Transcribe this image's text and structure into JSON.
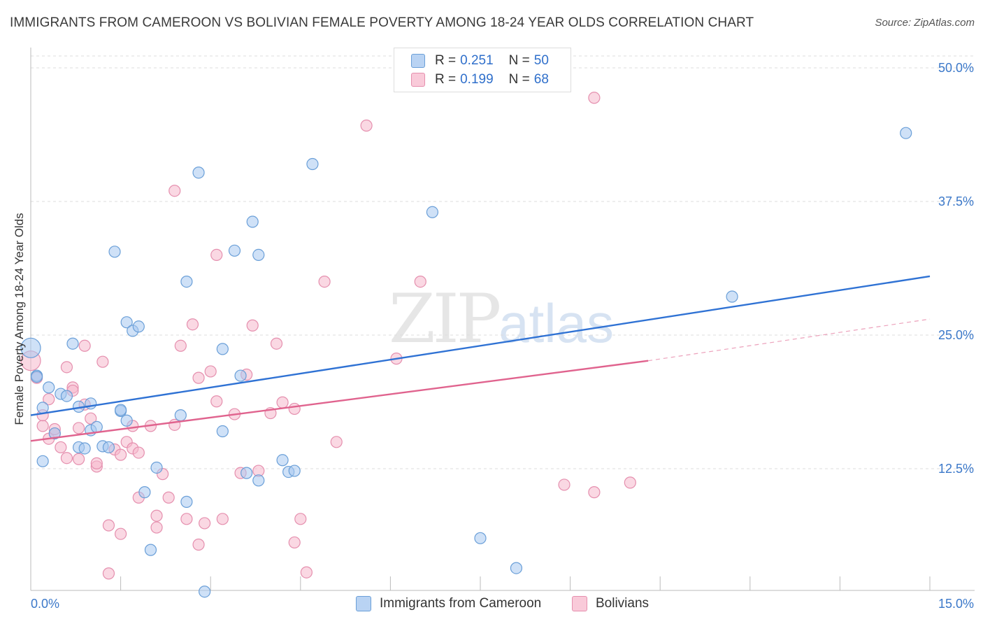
{
  "title": "IMMIGRANTS FROM CAMEROON VS BOLIVIAN FEMALE POVERTY AMONG 18-24 YEAR OLDS CORRELATION CHART",
  "source": "Source: ZipAtlas.com",
  "watermark": {
    "zip": "ZIP",
    "atlas": "atlas"
  },
  "legend": {
    "rows": [
      {
        "r_label": "R =",
        "r_value": "0.251",
        "n_label": "N =",
        "n_value": "50"
      },
      {
        "r_label": "R =",
        "r_value": "0.199",
        "n_label": "N =",
        "n_value": "68"
      }
    ]
  },
  "bottom_legend": [
    "Immigrants from Cameroon",
    "Bolivians"
  ],
  "colors": {
    "blue_fill": "#a8c8f0",
    "blue_stroke": "#6a9fd8",
    "blue_line": "#2f72d4",
    "pink_fill": "#f6b8cc",
    "pink_stroke": "#e58fae",
    "pink_line": "#e0638e",
    "axis_value": "#3b78c9"
  },
  "chart_data": {
    "type": "scatter",
    "title": "IMMIGRANTS FROM CAMEROON VS BOLIVIAN FEMALE POVERTY AMONG 18-24 YEAR OLDS CORRELATION CHART",
    "xlabel": "",
    "ylabel": "Female Poverty Among 18-24 Year Olds",
    "xlim": [
      0,
      15
    ],
    "ylim": [
      0,
      50
    ],
    "x_tick_labels": [
      "0.0%",
      "15.0%"
    ],
    "y_ticks": [
      12.5,
      25.0,
      37.5,
      50.0
    ],
    "y_tick_labels": [
      "12.5%",
      "25.0%",
      "37.5%",
      "50.0%"
    ],
    "grid": "horizontal dashed",
    "legend_position": "top-center",
    "series": [
      {
        "name": "Immigrants from Cameroon",
        "color": "#a8c8f0",
        "r": 0.251,
        "n": 50,
        "trend": {
          "x": [
            0.0,
            15.0
          ],
          "y": [
            17.5,
            30.5
          ],
          "style": "solid"
        },
        "points": [
          [
            0.0,
            23.8
          ],
          [
            0.1,
            21.2
          ],
          [
            0.2,
            18.2
          ],
          [
            0.2,
            13.2
          ],
          [
            0.3,
            20.1
          ],
          [
            0.4,
            15.8
          ],
          [
            0.5,
            19.5
          ],
          [
            0.6,
            19.3
          ],
          [
            0.7,
            24.2
          ],
          [
            0.8,
            18.3
          ],
          [
            0.8,
            14.5
          ],
          [
            0.9,
            14.4
          ],
          [
            1.0,
            18.6
          ],
          [
            1.0,
            16.1
          ],
          [
            1.1,
            16.4
          ],
          [
            1.2,
            14.6
          ],
          [
            1.3,
            14.5
          ],
          [
            1.4,
            32.8
          ],
          [
            1.5,
            17.9
          ],
          [
            1.5,
            18.0
          ],
          [
            1.6,
            17.0
          ],
          [
            1.6,
            26.2
          ],
          [
            1.7,
            25.4
          ],
          [
            1.8,
            25.8
          ],
          [
            1.9,
            10.3
          ],
          [
            2.0,
            4.9
          ],
          [
            2.1,
            12.6
          ],
          [
            2.5,
            17.5
          ],
          [
            2.6,
            9.4
          ],
          [
            2.6,
            30.0
          ],
          [
            2.8,
            40.2
          ],
          [
            2.9,
            1.0
          ],
          [
            3.2,
            16.0
          ],
          [
            3.2,
            23.7
          ],
          [
            3.4,
            32.9
          ],
          [
            3.5,
            21.2
          ],
          [
            3.6,
            12.1
          ],
          [
            3.7,
            35.6
          ],
          [
            3.8,
            32.5
          ],
          [
            3.8,
            11.4
          ],
          [
            4.2,
            13.3
          ],
          [
            4.3,
            12.2
          ],
          [
            4.4,
            12.3
          ],
          [
            4.7,
            41.0
          ],
          [
            6.7,
            36.5
          ],
          [
            7.5,
            6.0
          ],
          [
            8.1,
            3.2
          ],
          [
            11.7,
            28.6
          ],
          [
            14.6,
            43.9
          ],
          [
            0.1,
            21.1
          ]
        ]
      },
      {
        "name": "Bolivians",
        "color": "#f6b8cc",
        "r": 0.199,
        "n": 68,
        "trend": {
          "x": [
            0.0,
            10.3
          ],
          "y": [
            15.1,
            22.6
          ],
          "style": "solid",
          "dashed_extension": {
            "x": [
              10.3,
              15.0
            ],
            "y": [
              22.6,
              26.5
            ]
          }
        },
        "points": [
          [
            0.0,
            22.6
          ],
          [
            0.1,
            21.0
          ],
          [
            0.2,
            16.5
          ],
          [
            0.2,
            17.5
          ],
          [
            0.3,
            19.0
          ],
          [
            0.3,
            15.3
          ],
          [
            0.4,
            15.8
          ],
          [
            0.4,
            16.2
          ],
          [
            0.5,
            14.5
          ],
          [
            0.6,
            22.0
          ],
          [
            0.6,
            13.5
          ],
          [
            0.7,
            20.1
          ],
          [
            0.7,
            19.8
          ],
          [
            0.8,
            16.3
          ],
          [
            0.8,
            13.4
          ],
          [
            0.9,
            18.5
          ],
          [
            0.9,
            24.0
          ],
          [
            1.0,
            17.2
          ],
          [
            1.1,
            12.7
          ],
          [
            1.1,
            13.0
          ],
          [
            1.2,
            22.5
          ],
          [
            1.3,
            2.7
          ],
          [
            1.3,
            7.2
          ],
          [
            1.4,
            14.3
          ],
          [
            1.5,
            13.8
          ],
          [
            1.5,
            6.4
          ],
          [
            1.6,
            15.0
          ],
          [
            1.7,
            16.5
          ],
          [
            1.7,
            14.4
          ],
          [
            1.8,
            9.8
          ],
          [
            1.8,
            14.0
          ],
          [
            2.0,
            16.5
          ],
          [
            2.1,
            8.1
          ],
          [
            2.1,
            7.0
          ],
          [
            2.2,
            12.0
          ],
          [
            2.3,
            9.8
          ],
          [
            2.4,
            16.6
          ],
          [
            2.5,
            24.0
          ],
          [
            2.6,
            7.8
          ],
          [
            2.7,
            26.0
          ],
          [
            2.8,
            21.0
          ],
          [
            2.8,
            5.4
          ],
          [
            2.9,
            7.4
          ],
          [
            3.0,
            21.6
          ],
          [
            3.1,
            18.8
          ],
          [
            3.1,
            32.5
          ],
          [
            3.2,
            7.8
          ],
          [
            3.4,
            17.6
          ],
          [
            3.5,
            12.1
          ],
          [
            3.6,
            21.3
          ],
          [
            3.7,
            25.9
          ],
          [
            3.8,
            12.3
          ],
          [
            4.0,
            17.7
          ],
          [
            4.1,
            24.2
          ],
          [
            4.2,
            18.7
          ],
          [
            4.4,
            5.6
          ],
          [
            4.4,
            18.1
          ],
          [
            4.5,
            7.8
          ],
          [
            4.6,
            2.8
          ],
          [
            4.9,
            30.0
          ],
          [
            5.1,
            15.0
          ],
          [
            5.6,
            44.6
          ],
          [
            6.1,
            22.8
          ],
          [
            6.5,
            30.0
          ],
          [
            2.4,
            38.5
          ],
          [
            8.9,
            11.0
          ],
          [
            9.4,
            10.3
          ],
          [
            10.0,
            11.2
          ],
          [
            9.4,
            47.2
          ]
        ]
      }
    ]
  }
}
